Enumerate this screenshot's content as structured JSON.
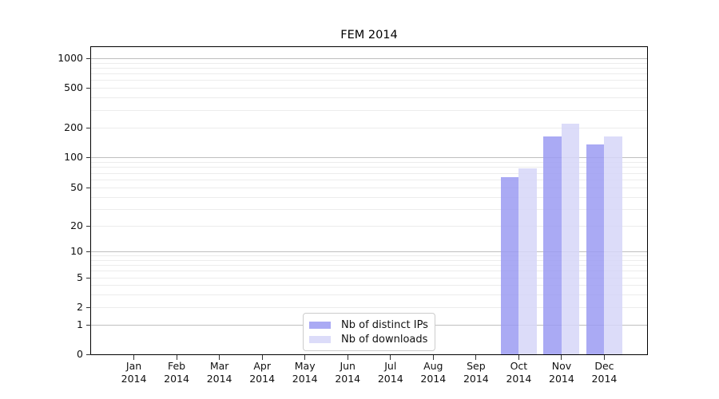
{
  "chart_data": {
    "type": "bar",
    "title": "FEM 2014",
    "categories": [
      "Jan",
      "Feb",
      "Mar",
      "Apr",
      "May",
      "Jun",
      "Jul",
      "Aug",
      "Sep",
      "Oct",
      "Nov",
      "Dec"
    ],
    "x_axis": {
      "year_line": "2014"
    },
    "y_axis": {
      "scale": "symlog",
      "tick_labels": [
        0,
        1,
        2,
        5,
        10,
        20,
        50,
        100,
        200,
        500,
        1000
      ],
      "ylim": [
        0,
        1400
      ],
      "grid": true
    },
    "series": [
      {
        "name": "Nb of distinct IPs",
        "color": "rgba(155,155,242,0.85)",
        "values": [
          null,
          null,
          null,
          null,
          null,
          null,
          null,
          null,
          null,
          63,
          163,
          135
        ]
      },
      {
        "name": "Nb of downloads",
        "color": "rgba(214,214,248,0.85)",
        "values": [
          null,
          null,
          null,
          null,
          null,
          null,
          null,
          null,
          null,
          78,
          220,
          163
        ]
      }
    ],
    "legend_position": "lower center",
    "colors": {
      "spine": "#000000",
      "grid_minor": "#ececec",
      "grid_major": "#bfbfbf",
      "legend_border": "#cccccc"
    }
  }
}
